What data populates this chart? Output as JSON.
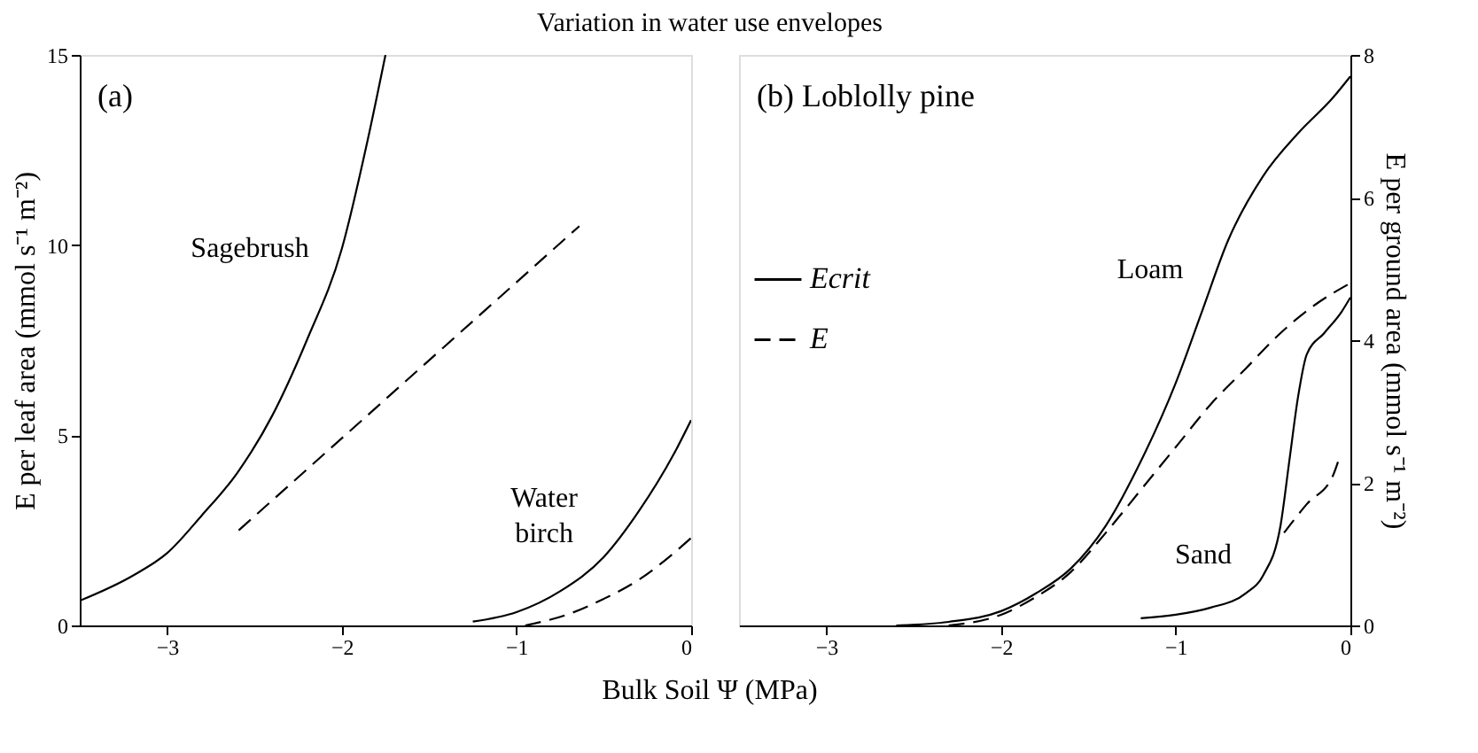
{
  "chart_data": [
    {
      "type": "line",
      "title": "Variation in water use envelopes",
      "xlabel": "Bulk Soil Ψ (MPa)",
      "ylabel": "E per leaf area (mmol s⁻¹ m⁻²)",
      "xlim": [
        -3.5,
        0
      ],
      "xticks": [
        -3,
        -2,
        -1,
        0
      ],
      "ylim": [
        0,
        15
      ],
      "yticks": [
        0,
        5,
        10,
        15
      ],
      "series": [
        {
          "color": "#000000",
          "line_style": "solid",
          "x": [
            -3.5,
            -3.2,
            -3.0,
            -2.8,
            -2.6,
            -2.4,
            -2.2,
            -2.0,
            -1.85,
            -1.75
          ],
          "values": [
            0.65,
            1.3,
            1.9,
            2.9,
            4.0,
            5.5,
            7.5,
            9.9,
            12.8,
            15.0
          ]
        },
        {
          "color": "#000000",
          "line_style": "dashed",
          "x": [
            -2.59,
            -0.64
          ],
          "values": [
            2.5,
            10.5
          ]
        },
        {
          "color": "#000000",
          "line_style": "solid",
          "x": [
            -1.25,
            -1.0,
            -0.75,
            -0.5,
            -0.3,
            -0.1,
            0
          ],
          "values": [
            0.1,
            0.35,
            0.9,
            1.8,
            3.0,
            4.5,
            5.4
          ]
        },
        {
          "color": "#000000",
          "line_style": "dashed",
          "x": [
            -0.95,
            -0.7,
            -0.5,
            -0.3,
            -0.1,
            0
          ],
          "values": [
            0,
            0.3,
            0.7,
            1.2,
            1.9,
            2.3
          ]
        }
      ],
      "annotations": [
        "(a)",
        "Sagebrush",
        "Water birch"
      ]
    },
    {
      "type": "line",
      "y2label": "E per ground area (mmol s⁻¹ m⁻²)",
      "xlim": [
        -3.5,
        0
      ],
      "xticks": [
        -3,
        -2,
        -1,
        0
      ],
      "y2lim": [
        0,
        8
      ],
      "y2ticks": [
        0,
        2,
        4,
        6,
        8
      ],
      "legend": "left",
      "series": [
        {
          "name": "Ecrit",
          "axis": "y2",
          "color": "#000000",
          "line_style": "solid",
          "x": [
            -2.6,
            -2.3,
            -2.0,
            -1.8,
            -1.6,
            -1.4,
            -1.2,
            -1.0,
            -0.85,
            -0.7,
            -0.5,
            -0.3,
            -0.1,
            0
          ],
          "values": [
            0,
            0.05,
            0.2,
            0.45,
            0.8,
            1.4,
            2.3,
            3.4,
            4.4,
            5.4,
            6.3,
            6.9,
            7.4,
            7.7
          ]
        },
        {
          "name": "E",
          "axis": "y2",
          "color": "#000000",
          "line_style": "dashed",
          "x": [
            -2.3,
            -2.0,
            -1.8,
            -1.6,
            -1.4,
            -1.2,
            -1.0,
            -0.8,
            -0.6,
            -0.4,
            -0.2,
            0
          ],
          "values": [
            0,
            0.15,
            0.4,
            0.75,
            1.3,
            1.9,
            2.5,
            3.1,
            3.6,
            4.1,
            4.5,
            4.8
          ]
        },
        {
          "axis": "y2",
          "color": "#000000",
          "line_style": "solid",
          "x": [
            -1.2,
            -1.0,
            -0.8,
            -0.6,
            -0.5,
            -0.4,
            -0.35,
            -0.3,
            -0.25,
            -0.15,
            -0.05,
            0
          ],
          "values": [
            0.1,
            0.15,
            0.25,
            0.45,
            0.7,
            1.4,
            2.3,
            3.2,
            3.8,
            4.1,
            4.4,
            4.6
          ]
        },
        {
          "axis": "y2",
          "color": "#000000",
          "line_style": "dashed",
          "x": [
            -0.38,
            -0.25,
            -0.1,
            -0.07
          ],
          "values": [
            1.3,
            1.7,
            2.1,
            2.3
          ]
        }
      ],
      "annotations": [
        "(b) Loblolly pine",
        "Loam",
        "Sand"
      ]
    }
  ]
}
